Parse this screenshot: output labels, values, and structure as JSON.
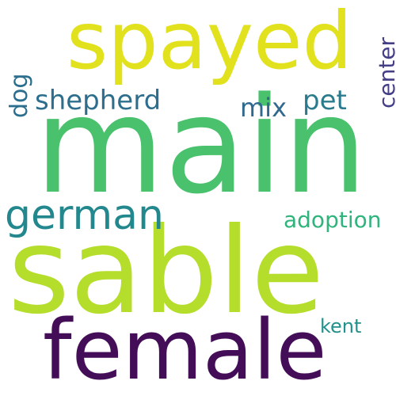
{
  "words": {
    "spayed": {
      "text": "spayed",
      "color": "#e2e11d"
    },
    "main": {
      "text": "main",
      "color": "#49c16d"
    },
    "sable": {
      "text": "sable",
      "color": "#b5dd2b"
    },
    "female": {
      "text": "female",
      "color": "#440d57"
    },
    "german": {
      "text": "german",
      "color": "#23888e"
    },
    "shepherd": {
      "text": "shepherd",
      "color": "#2d6e8e"
    },
    "mix": {
      "text": "mix",
      "color": "#30688e"
    },
    "pet": {
      "text": "pet",
      "color": "#2b7b8e"
    },
    "dog": {
      "text": "dog",
      "color": "#2b6e8e"
    },
    "center": {
      "text": "center",
      "color": "#433e85"
    },
    "adoption": {
      "text": "adoption",
      "color": "#2fb47c"
    },
    "kent": {
      "text": "kent",
      "color": "#21918c"
    }
  }
}
